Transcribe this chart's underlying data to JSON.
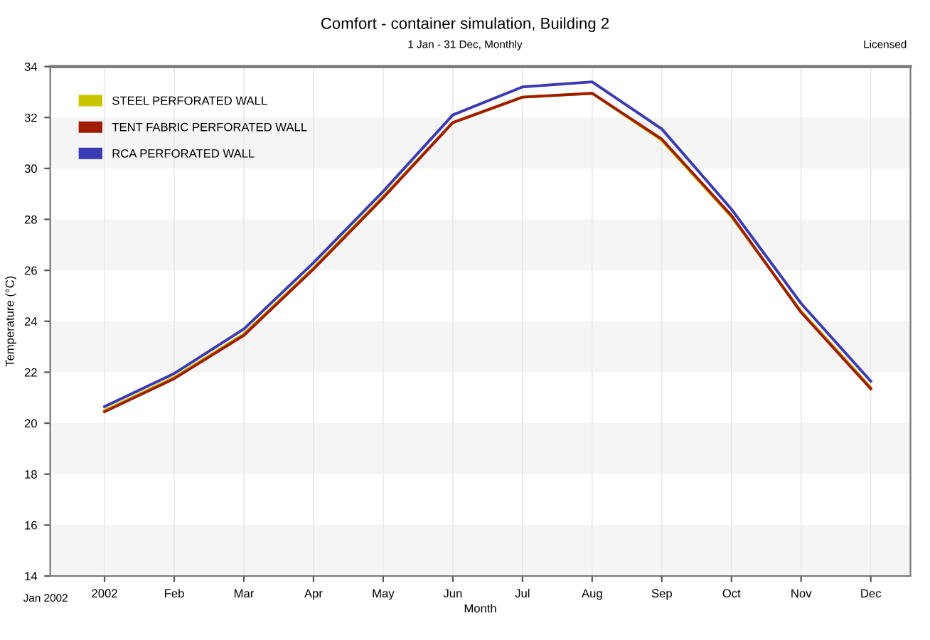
{
  "chart_data": {
    "type": "line",
    "title": "Comfort - container simulation, Building 2",
    "subtitle": "1 Jan - 31 Dec, Monthly",
    "xlabel": "Month",
    "ylabel": "Temperature (°C)",
    "annotations": [
      "Licensed",
      "Jan 2002"
    ],
    "categories": [
      "2002",
      "Feb",
      "Mar",
      "Apr",
      "May",
      "Jun",
      "Jul",
      "Aug",
      "Sep",
      "Oct",
      "Nov",
      "Dec"
    ],
    "series": [
      {
        "name": "STEEL PERFORATED WALL",
        "color": "#c8c400",
        "values": [
          20.5,
          21.8,
          23.5,
          26.1,
          28.9,
          31.8,
          32.8,
          32.95,
          31.1,
          28.1,
          24.4,
          21.4
        ]
      },
      {
        "name": "TENT FABRIC PERFORATED WALL",
        "color": "#a01c00",
        "values": [
          20.45,
          21.75,
          23.45,
          26.05,
          28.85,
          31.8,
          32.8,
          32.95,
          31.15,
          28.15,
          24.35,
          21.35
        ]
      },
      {
        "name": "RCA PERFORATED WALL",
        "color": "#3a3ab4",
        "values": [
          20.65,
          21.95,
          23.7,
          26.3,
          29.1,
          32.1,
          33.2,
          33.4,
          31.55,
          28.4,
          24.7,
          21.65
        ]
      }
    ],
    "ylim": [
      14,
      34
    ],
    "yticks": [
      14,
      16,
      18,
      20,
      22,
      24,
      26,
      28,
      30,
      32,
      34
    ],
    "grid": true,
    "legend": "top left",
    "marker": "none",
    "line_style": "solid"
  }
}
